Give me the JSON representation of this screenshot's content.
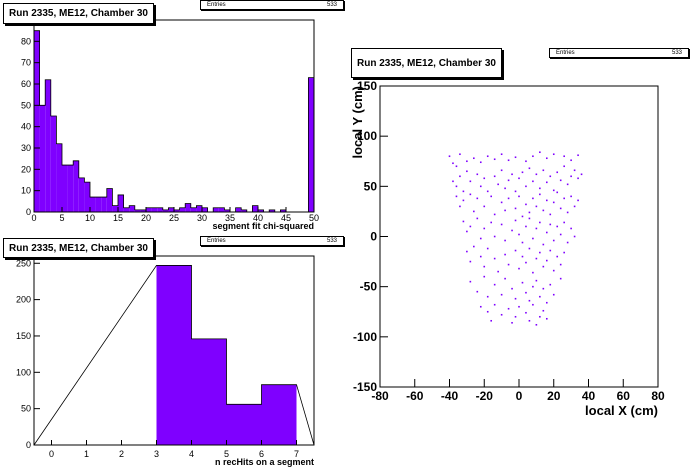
{
  "chart_data": [
    {
      "type": "bar",
      "title": "Run 2335, ME12, Chamber 30",
      "stats": {
        "label": "Entries",
        "value": "533"
      },
      "xlabel": "segment fit chi-squared",
      "ylabel": "",
      "xlim": [
        0,
        50
      ],
      "ylim": [
        0,
        90
      ],
      "bin_width": 1,
      "x": [
        0,
        1,
        2,
        3,
        4,
        5,
        6,
        7,
        8,
        9,
        10,
        11,
        12,
        13,
        14,
        15,
        16,
        17,
        18,
        19,
        20,
        21,
        22,
        23,
        24,
        25,
        26,
        27,
        28,
        29,
        30,
        31,
        32,
        33,
        34,
        35,
        36,
        37,
        38,
        39,
        40,
        41,
        42,
        43,
        44,
        45,
        46,
        47,
        48,
        49
      ],
      "values": [
        85,
        50,
        62,
        45,
        32,
        22,
        22,
        24,
        16,
        14,
        7,
        7,
        7,
        11,
        3,
        8,
        2,
        3,
        1,
        1,
        2,
        2,
        2,
        1,
        2,
        1,
        2,
        4,
        2,
        3,
        2,
        0,
        2,
        2,
        1,
        0,
        2,
        1,
        0,
        3,
        1,
        0,
        1,
        0,
        1,
        0,
        0,
        0,
        0,
        63
      ],
      "xticks": [
        0,
        5,
        10,
        15,
        20,
        25,
        30,
        35,
        40,
        45,
        50
      ],
      "yticks": [
        0,
        10,
        20,
        30,
        40,
        50,
        60,
        70,
        80
      ],
      "fill_color": "#7f00ff"
    },
    {
      "type": "bar",
      "title": "Run 2335, ME12, Chamber 30",
      "stats": {
        "label": "Entries",
        "value": "533"
      },
      "xlabel": "n recHits on a segment",
      "ylabel": "",
      "xlim": [
        -0.5,
        7.5
      ],
      "ylim": [
        0,
        260
      ],
      "bin_width": 1,
      "x": [
        3,
        4,
        5,
        6
      ],
      "values": [
        247,
        146,
        56,
        83
      ],
      "xticks": [
        0,
        1,
        2,
        3,
        4,
        5,
        6,
        7
      ],
      "yticks": [
        0,
        50,
        100,
        150,
        200,
        250
      ],
      "fill_color": "#7f00ff"
    },
    {
      "type": "scatter",
      "title": "Run 2335, ME12, Chamber 30",
      "stats": {
        "label": "Entries",
        "value": "533"
      },
      "xlabel": "local X (cm)",
      "ylabel": "local Y (cm)",
      "xlim": [
        -80,
        80
      ],
      "ylim": [
        -150,
        150
      ],
      "xticks": [
        -80,
        -60,
        -40,
        -20,
        0,
        20,
        40,
        60,
        80
      ],
      "yticks": [
        -150,
        -100,
        -50,
        0,
        50,
        100,
        150
      ],
      "marker_color": "#7f00ff",
      "points": [
        [
          -40,
          80
        ],
        [
          -38,
          73
        ],
        [
          -36,
          70
        ],
        [
          -34,
          82
        ],
        [
          -30,
          75
        ],
        [
          -26,
          78
        ],
        [
          -22,
          74
        ],
        [
          -18,
          80
        ],
        [
          -14,
          77
        ],
        [
          -10,
          82
        ],
        [
          -6,
          76
        ],
        [
          -2,
          79
        ],
        [
          4,
          75
        ],
        [
          8,
          80
        ],
        [
          12,
          84
        ],
        [
          16,
          78
        ],
        [
          20,
          82
        ],
        [
          26,
          80
        ],
        [
          30,
          76
        ],
        [
          34,
          81
        ],
        [
          -38,
          55
        ],
        [
          -36,
          50
        ],
        [
          -34,
          60
        ],
        [
          -32,
          45
        ],
        [
          -30,
          65
        ],
        [
          -28,
          55
        ],
        [
          -24,
          62
        ],
        [
          -22,
          50
        ],
        [
          -20,
          58
        ],
        [
          -18,
          45
        ],
        [
          -14,
          60
        ],
        [
          -12,
          52
        ],
        [
          -10,
          66
        ],
        [
          -8,
          48
        ],
        [
          -6,
          56
        ],
        [
          -4,
          62
        ],
        [
          -2,
          45
        ],
        [
          0,
          58
        ],
        [
          2,
          64
        ],
        [
          4,
          50
        ],
        [
          6,
          68
        ],
        [
          8,
          55
        ],
        [
          10,
          62
        ],
        [
          12,
          48
        ],
        [
          14,
          66
        ],
        [
          16,
          54
        ],
        [
          18,
          60
        ],
        [
          20,
          46
        ],
        [
          22,
          64
        ],
        [
          24,
          56
        ],
        [
          26,
          70
        ],
        [
          28,
          52
        ],
        [
          30,
          60
        ],
        [
          32,
          66
        ],
        [
          34,
          58
        ],
        [
          36,
          62
        ],
        [
          -36,
          40
        ],
        [
          -34,
          30
        ],
        [
          -32,
          36
        ],
        [
          -28,
          42
        ],
        [
          -26,
          25
        ],
        [
          -24,
          38
        ],
        [
          -20,
          30
        ],
        [
          -16,
          40
        ],
        [
          -14,
          22
        ],
        [
          -10,
          34
        ],
        [
          -8,
          26
        ],
        [
          -6,
          38
        ],
        [
          -2,
          28
        ],
        [
          0,
          40
        ],
        [
          2,
          20
        ],
        [
          4,
          32
        ],
        [
          6,
          24
        ],
        [
          8,
          38
        ],
        [
          10,
          30
        ],
        [
          12,
          42
        ],
        [
          14,
          26
        ],
        [
          16,
          36
        ],
        [
          18,
          22
        ],
        [
          20,
          34
        ],
        [
          22,
          44
        ],
        [
          24,
          28
        ],
        [
          26,
          38
        ],
        [
          28,
          24
        ],
        [
          30,
          40
        ],
        [
          32,
          30
        ],
        [
          34,
          36
        ],
        [
          -32,
          15
        ],
        [
          -30,
          5
        ],
        [
          -28,
          10
        ],
        [
          -24,
          18
        ],
        [
          -22,
          -2
        ],
        [
          -20,
          8
        ],
        [
          -16,
          14
        ],
        [
          -14,
          0
        ],
        [
          -10,
          12
        ],
        [
          -8,
          -4
        ],
        [
          -4,
          6
        ],
        [
          -2,
          16
        ],
        [
          0,
          2
        ],
        [
          2,
          -6
        ],
        [
          4,
          10
        ],
        [
          6,
          18
        ],
        [
          8,
          -2
        ],
        [
          10,
          8
        ],
        [
          12,
          14
        ],
        [
          14,
          -8
        ],
        [
          16,
          4
        ],
        [
          18,
          12
        ],
        [
          20,
          -4
        ],
        [
          22,
          10
        ],
        [
          24,
          2
        ],
        [
          26,
          14
        ],
        [
          28,
          -6
        ],
        [
          30,
          8
        ],
        [
          32,
          0
        ],
        [
          -30,
          -15
        ],
        [
          -28,
          -25
        ],
        [
          -26,
          -10
        ],
        [
          -22,
          -20
        ],
        [
          -20,
          -30
        ],
        [
          -18,
          -12
        ],
        [
          -14,
          -22
        ],
        [
          -12,
          -35
        ],
        [
          -8,
          -18
        ],
        [
          -6,
          -28
        ],
        [
          -2,
          -14
        ],
        [
          0,
          -32
        ],
        [
          2,
          -20
        ],
        [
          4,
          -26
        ],
        [
          6,
          -12
        ],
        [
          8,
          -36
        ],
        [
          10,
          -22
        ],
        [
          12,
          -16
        ],
        [
          14,
          -30
        ],
        [
          16,
          -24
        ],
        [
          18,
          -14
        ],
        [
          20,
          -34
        ],
        [
          22,
          -20
        ],
        [
          24,
          -28
        ],
        [
          26,
          -16
        ],
        [
          -28,
          -45
        ],
        [
          -24,
          -55
        ],
        [
          -20,
          -40
        ],
        [
          -18,
          -60
        ],
        [
          -14,
          -48
        ],
        [
          -10,
          -58
        ],
        [
          -8,
          -42
        ],
        [
          -4,
          -52
        ],
        [
          -2,
          -62
        ],
        [
          2,
          -46
        ],
        [
          4,
          -56
        ],
        [
          6,
          -64
        ],
        [
          8,
          -50
        ],
        [
          10,
          -44
        ],
        [
          12,
          -60
        ],
        [
          14,
          -52
        ],
        [
          16,
          -66
        ],
        [
          18,
          -48
        ],
        [
          20,
          -58
        ],
        [
          24,
          -42
        ],
        [
          -22,
          -70
        ],
        [
          -18,
          -75
        ],
        [
          -14,
          -68
        ],
        [
          -10,
          -78
        ],
        [
          -6,
          -72
        ],
        [
          -2,
          -80
        ],
        [
          0,
          -70
        ],
        [
          4,
          -76
        ],
        [
          8,
          -68
        ],
        [
          12,
          -80
        ],
        [
          14,
          -74
        ],
        [
          -16,
          -84
        ],
        [
          -4,
          -86
        ],
        [
          6,
          -84
        ],
        [
          16,
          -82
        ],
        [
          10,
          -88
        ]
      ]
    }
  ]
}
